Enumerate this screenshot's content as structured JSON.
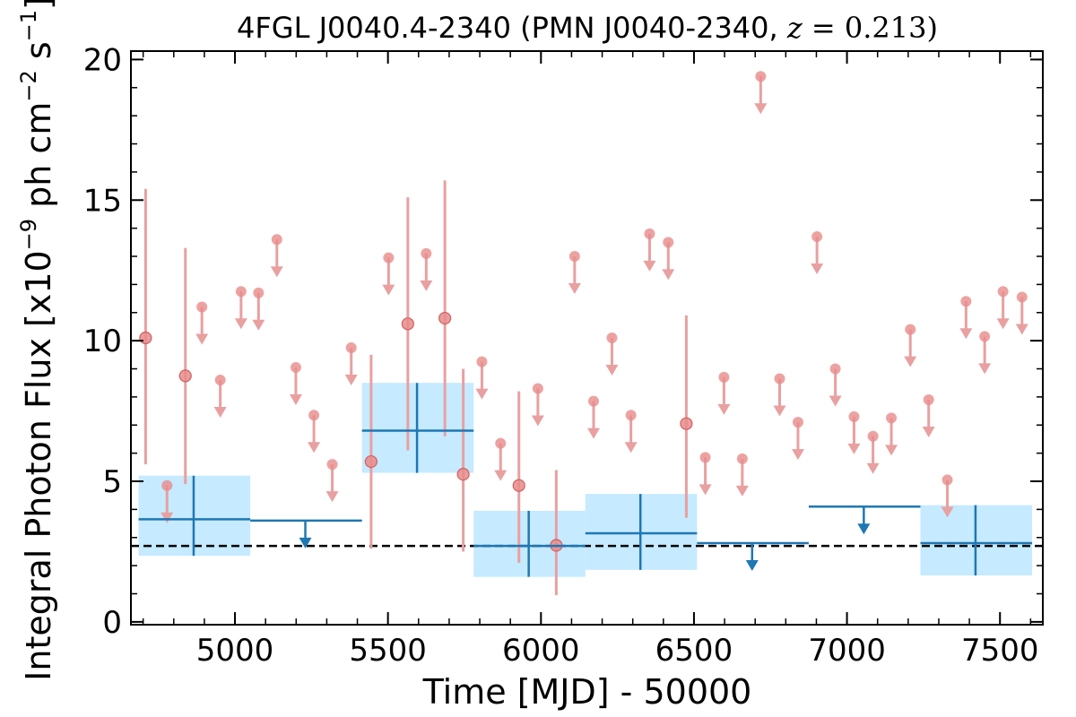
{
  "chart_data": {
    "type": "scatter",
    "title": "4FGL J0040.4-2340 (PMN J0040-2340, ",
    "title_math_var": "z",
    "title_math_rest": " = 0.213)",
    "title_close": ")",
    "xlabel": "Time [MJD] - 50000",
    "ylabel_prefix": "Integral Photon Flux [x10",
    "ylabel_exp1": "−9",
    "ylabel_mid": " ph cm",
    "ylabel_exp2": "−2",
    "ylabel_s": " s",
    "ylabel_exp3": "−1",
    "ylabel_suffix": "]",
    "xlim": [
      4660,
      7640
    ],
    "ylim": [
      -0.1,
      20.3
    ],
    "xticks": [
      5000,
      5500,
      6000,
      6500,
      7000,
      7500
    ],
    "xtick_labels": [
      "5000",
      "5500",
      "6000",
      "6500",
      "7000",
      "7500"
    ],
    "yticks": [
      0,
      5,
      10,
      15,
      20
    ],
    "ytick_labels": [
      "0",
      "5",
      "10",
      "15",
      "20"
    ],
    "grid": false,
    "reference_line": {
      "y": 2.7,
      "style": "dashed",
      "color": "#000000"
    },
    "colors": {
      "fine_points": "#e88b8b",
      "fine_errorbars": "#e8a0a0",
      "coarse_line": "#1f77b4",
      "coarse_band": "#c6eaff"
    },
    "series": [
      {
        "kind": "fine_detections",
        "points": [
          {
            "x": 4708,
            "y": 10.1,
            "ylo": 5.6,
            "yhi": 15.4
          },
          {
            "x": 4838,
            "y": 8.75,
            "ylo": 4.9,
            "yhi": 13.3
          },
          {
            "x": 5445,
            "y": 5.7,
            "ylo": 2.6,
            "yhi": 9.5
          },
          {
            "x": 5565,
            "y": 10.6,
            "ylo": 6.1,
            "yhi": 15.1
          },
          {
            "x": 5686,
            "y": 10.8,
            "ylo": 6.6,
            "yhi": 15.7
          },
          {
            "x": 5746,
            "y": 5.25,
            "ylo": 2.5,
            "yhi": 9.0
          },
          {
            "x": 5928,
            "y": 4.85,
            "ylo": 2.1,
            "yhi": 8.2
          },
          {
            "x": 6050,
            "y": 2.72,
            "ylo": 0.95,
            "yhi": 5.4
          },
          {
            "x": 6475,
            "y": 7.05,
            "ylo": 3.7,
            "yhi": 10.9
          }
        ]
      },
      {
        "kind": "fine_upper_limits",
        "points": [
          {
            "x": 4778,
            "y": 4.85
          },
          {
            "x": 4892,
            "y": 11.2
          },
          {
            "x": 4952,
            "y": 8.6
          },
          {
            "x": 5020,
            "y": 11.75
          },
          {
            "x": 5077,
            "y": 11.7
          },
          {
            "x": 5137,
            "y": 13.6
          },
          {
            "x": 5199,
            "y": 9.05
          },
          {
            "x": 5258,
            "y": 7.35
          },
          {
            "x": 5318,
            "y": 5.6
          },
          {
            "x": 5380,
            "y": 9.75
          },
          {
            "x": 5502,
            "y": 12.95
          },
          {
            "x": 5625,
            "y": 13.1
          },
          {
            "x": 5807,
            "y": 9.25
          },
          {
            "x": 5868,
            "y": 6.35
          },
          {
            "x": 5990,
            "y": 8.3
          },
          {
            "x": 6110,
            "y": 13.0
          },
          {
            "x": 6172,
            "y": 7.85
          },
          {
            "x": 6232,
            "y": 10.1
          },
          {
            "x": 6294,
            "y": 7.35
          },
          {
            "x": 6355,
            "y": 13.8
          },
          {
            "x": 6416,
            "y": 13.5
          },
          {
            "x": 6537,
            "y": 5.85
          },
          {
            "x": 6598,
            "y": 8.7
          },
          {
            "x": 6658,
            "y": 5.8
          },
          {
            "x": 6718,
            "y": 19.4
          },
          {
            "x": 6780,
            "y": 8.65
          },
          {
            "x": 6840,
            "y": 7.1
          },
          {
            "x": 6902,
            "y": 13.7
          },
          {
            "x": 6962,
            "y": 9.0
          },
          {
            "x": 7023,
            "y": 7.3
          },
          {
            "x": 7085,
            "y": 6.6
          },
          {
            "x": 7145,
            "y": 7.25
          },
          {
            "x": 7207,
            "y": 10.4
          },
          {
            "x": 7267,
            "y": 7.9
          },
          {
            "x": 7328,
            "y": 5.05
          },
          {
            "x": 7389,
            "y": 11.4
          },
          {
            "x": 7450,
            "y": 10.15
          },
          {
            "x": 7510,
            "y": 11.75
          },
          {
            "x": 7572,
            "y": 11.55
          }
        ]
      },
      {
        "kind": "coarse_detections",
        "points": [
          {
            "x": 4865,
            "xlo": 4685,
            "xhi": 5050,
            "y": 3.65,
            "ylo": 2.35,
            "yhi": 5.2
          },
          {
            "x": 5595,
            "xlo": 5415,
            "xhi": 5780,
            "y": 6.8,
            "ylo": 5.3,
            "yhi": 8.5
          },
          {
            "x": 5960,
            "xlo": 5780,
            "xhi": 6145,
            "y": 2.7,
            "ylo": 1.6,
            "yhi": 3.95
          },
          {
            "x": 6325,
            "xlo": 6145,
            "xhi": 6510,
            "y": 3.15,
            "ylo": 1.85,
            "yhi": 4.55
          },
          {
            "x": 7420,
            "xlo": 7240,
            "xhi": 7605,
            "y": 2.8,
            "ylo": 1.65,
            "yhi": 4.15
          }
        ]
      },
      {
        "kind": "coarse_upper_limits",
        "points": [
          {
            "x": 5230,
            "xlo": 5050,
            "xhi": 5415,
            "y": 3.6
          },
          {
            "x": 6690,
            "xlo": 6510,
            "xhi": 6875,
            "y": 2.8
          },
          {
            "x": 7055,
            "xlo": 6875,
            "xhi": 7240,
            "y": 4.1
          }
        ]
      }
    ]
  }
}
